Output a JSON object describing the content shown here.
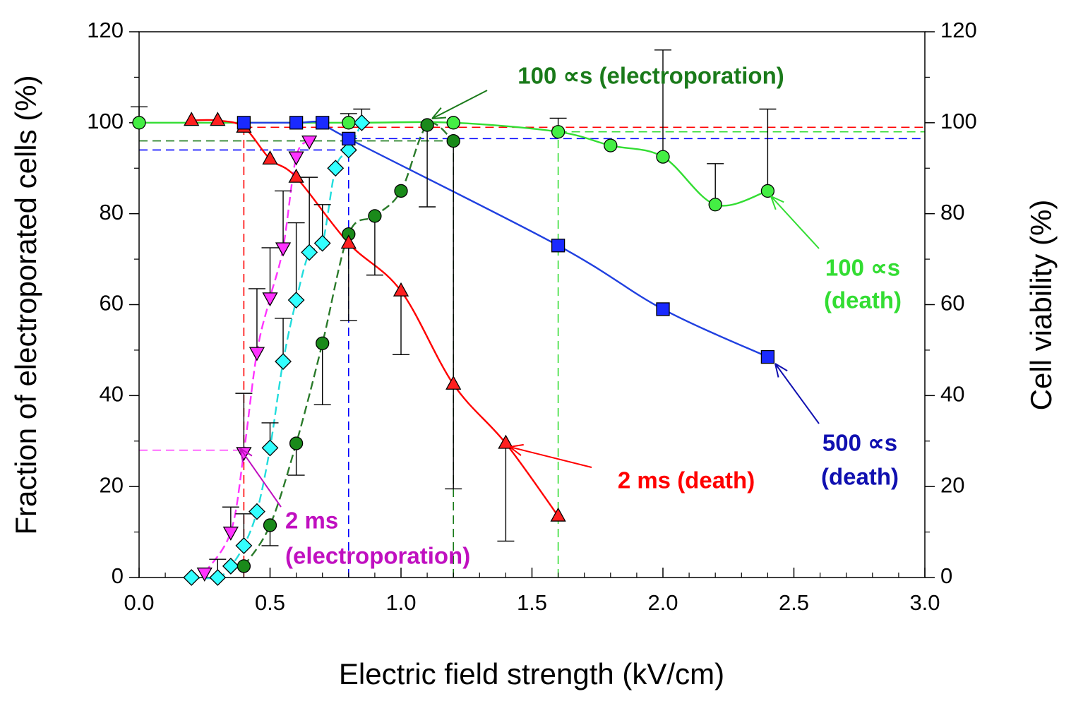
{
  "chart_data": {
    "type": "scatter",
    "xlabel": "Electric field strength (kV/cm)",
    "ylabel": "Fraction of electroporated cells (%)",
    "y2label": "Cell viability (%)",
    "xlim": [
      0,
      3.0
    ],
    "xticks": [
      {
        "value": 0,
        "label": "0.0"
      },
      0.5,
      {
        "value": 1,
        "label": "1.0"
      },
      1.5,
      {
        "value": 2,
        "label": "2.0"
      },
      2.5,
      {
        "value": 3,
        "label": "3.0"
      }
    ],
    "ylim": [
      0,
      120
    ],
    "yticks": [
      0,
      20,
      40,
      60,
      80,
      100,
      120
    ],
    "y2lim": [
      0,
      120
    ],
    "y2ticks": [
      0,
      20,
      40,
      60,
      80,
      100,
      120
    ],
    "series": [
      {
        "marker": "triangle-down",
        "color": "#ff33ff",
        "line_color": "#ff33ff",
        "line": "dashed",
        "error_direction": "up",
        "x": [
          0.25,
          0.35,
          0.4,
          0.45,
          0.5,
          0.55,
          0.6,
          0.65
        ],
        "values": [
          1,
          10,
          27.5,
          49.5,
          61.5,
          72.5,
          92.5,
          96
        ],
        "errors": [
          null,
          5.5,
          13,
          14,
          11,
          12.5,
          null,
          null
        ]
      },
      {
        "marker": "diamond",
        "color": "#33ffff",
        "line_color": "#22dddd",
        "line": "dashed",
        "error_direction": "up",
        "x": [
          0.2,
          0.3,
          0.35,
          0.4,
          0.45,
          0.5,
          0.55,
          0.6,
          0.65,
          0.7,
          0.75,
          0.8,
          0.85
        ],
        "values": [
          0,
          0,
          2.5,
          7,
          14.5,
          28.5,
          47.5,
          61,
          71.5,
          73.5,
          90,
          94,
          100
        ],
        "errors": [
          null,
          4,
          null,
          7,
          null,
          5.5,
          9.5,
          17,
          16.5,
          8.5,
          null,
          null,
          3
        ]
      },
      {
        "marker": "circle",
        "color": "#1a8a1a",
        "line_color": "#2a7a2a",
        "line": "dashed",
        "error_direction": "down",
        "x": [
          0.4,
          0.5,
          0.6,
          0.7,
          0.8,
          0.9,
          1.0,
          1.1,
          1.2
        ],
        "values": [
          2.5,
          11.5,
          29.5,
          51.5,
          75.5,
          79.5,
          85,
          99.5,
          96
        ],
        "errors": [
          null,
          4.5,
          7,
          13.5,
          19,
          13,
          null,
          18,
          76.5
        ]
      },
      {
        "marker": "circle",
        "color": "#44ee44",
        "line_color": "#33dd33",
        "line": "solid",
        "error_direction": "up",
        "axis": "y2",
        "x": [
          0,
          0.8,
          1.2,
          1.6,
          1.8,
          2.0,
          2.2,
          2.4
        ],
        "values": [
          100,
          100,
          100,
          98,
          95,
          92.5,
          82,
          85
        ],
        "errors": [
          3.5,
          2,
          null,
          3,
          null,
          23.5,
          9,
          18
        ]
      },
      {
        "marker": "triangle-up",
        "color": "#ff2020",
        "line_color": "#ff0000",
        "line": "solid",
        "error_direction": "down",
        "axis": "y2",
        "x": [
          0.2,
          0.3,
          0.4,
          0.5,
          0.6,
          0.8,
          1.0,
          1.2,
          1.4,
          1.6
        ],
        "values": [
          100.5,
          100.5,
          99,
          92,
          88,
          73.5,
          63,
          42.5,
          29.5,
          13.5
        ],
        "errors": [
          null,
          null,
          null,
          null,
          null,
          null,
          14,
          null,
          21.5,
          null
        ]
      },
      {
        "marker": "square",
        "color": "#1a2aff",
        "line_color": "#2040e0",
        "line": "solid",
        "axis": "y2",
        "x": [
          0.4,
          0.6,
          0.7,
          0.8,
          1.6,
          2.0,
          2.4
        ],
        "values": [
          100,
          100,
          100,
          96.5,
          73,
          59,
          48.5
        ]
      }
    ],
    "reference_lines": [
      {
        "color": "#ff0000",
        "x": [
          0.4,
          3.0
        ],
        "y": [
          99,
          99
        ]
      },
      {
        "color": "#ff0000",
        "x": [
          0.4,
          0.4
        ],
        "y": [
          0,
          99
        ]
      },
      {
        "color": "#ff33ff",
        "x": [
          0,
          0.4
        ],
        "y": [
          28,
          28
        ]
      },
      {
        "color": "#0000ff",
        "x": [
          0,
          0.8
        ],
        "y": [
          94,
          94
        ]
      },
      {
        "color": "#0000ff",
        "x": [
          0.8,
          3.0
        ],
        "y": [
          96.5,
          96.5
        ]
      },
      {
        "color": "#0000ff",
        "x": [
          0.8,
          0.8
        ],
        "y": [
          0,
          96.5
        ]
      },
      {
        "color": "#1a7a1a",
        "x": [
          0,
          1.2
        ],
        "y": [
          96,
          96
        ]
      },
      {
        "color": "#1a7a1a",
        "x": [
          1.2,
          1.2
        ],
        "y": [
          0,
          96
        ]
      },
      {
        "color": "#33dd33",
        "x": [
          1.6,
          3.0
        ],
        "y": [
          98,
          98
        ]
      },
      {
        "color": "#33dd33",
        "x": [
          1.6,
          1.6
        ],
        "y": [
          0,
          98
        ]
      }
    ],
    "annotations": [
      {
        "lines": [
          "100 ∝s (electroporation)"
        ],
        "color": "#1a7a1a"
      },
      {
        "lines": [
          "100 ∝s",
          "(death)"
        ],
        "color": "#33dd33"
      },
      {
        "lines": [
          "500 ∝s",
          "(death)"
        ],
        "color": "#1010b0"
      },
      {
        "lines": [
          "2 ms (death)"
        ],
        "color": "#ff0000"
      },
      {
        "lines": [
          "2 ms",
          "(electroporation)"
        ],
        "color": "#c010c0"
      }
    ]
  }
}
